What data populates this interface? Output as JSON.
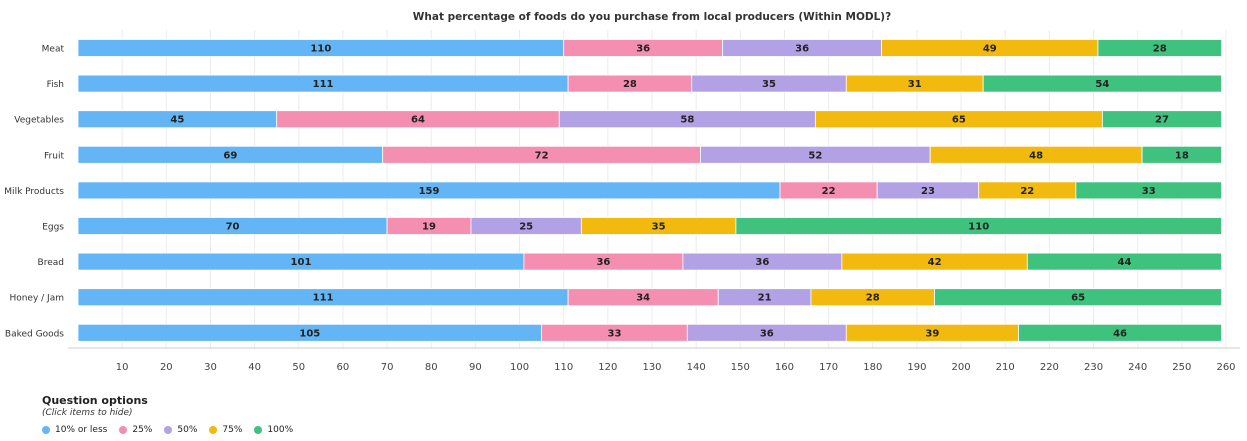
{
  "chart_data": {
    "type": "bar",
    "orientation": "horizontal",
    "stacked": true,
    "title": "What percentage of foods do you purchase from local producers (Within MODL)?",
    "categories": [
      "Meat",
      "Fish",
      "Vegetables",
      "Fruit",
      "Milk Products",
      "Eggs",
      "Bread",
      "Honey / Jam",
      "Baked Goods"
    ],
    "series": [
      {
        "name": "10% or less",
        "color": "#64b5f6",
        "values": [
          110,
          111,
          45,
          69,
          159,
          70,
          101,
          111,
          105
        ]
      },
      {
        "name": "25%",
        "color": "#f48fb1",
        "values": [
          36,
          28,
          64,
          72,
          22,
          19,
          36,
          34,
          33
        ]
      },
      {
        "name": "50%",
        "color": "#b3a1e6",
        "values": [
          36,
          35,
          58,
          52,
          23,
          25,
          36,
          21,
          36
        ]
      },
      {
        "name": "75%",
        "color": "#f2b90f",
        "values": [
          49,
          31,
          65,
          48,
          22,
          35,
          42,
          28,
          39
        ]
      },
      {
        "name": "100%",
        "color": "#3fc27d",
        "values": [
          28,
          54,
          27,
          18,
          33,
          110,
          44,
          65,
          46
        ]
      }
    ],
    "xticks": [
      10,
      20,
      30,
      40,
      50,
      60,
      70,
      80,
      90,
      100,
      110,
      120,
      130,
      140,
      150,
      160,
      170,
      180,
      190,
      200,
      210,
      220,
      230,
      240,
      250,
      260
    ],
    "xlim": [
      0,
      260
    ],
    "grid": true,
    "legend_position": "bottom-left"
  },
  "legend": {
    "title": "Question options",
    "hint": "(Click items to hide)"
  }
}
